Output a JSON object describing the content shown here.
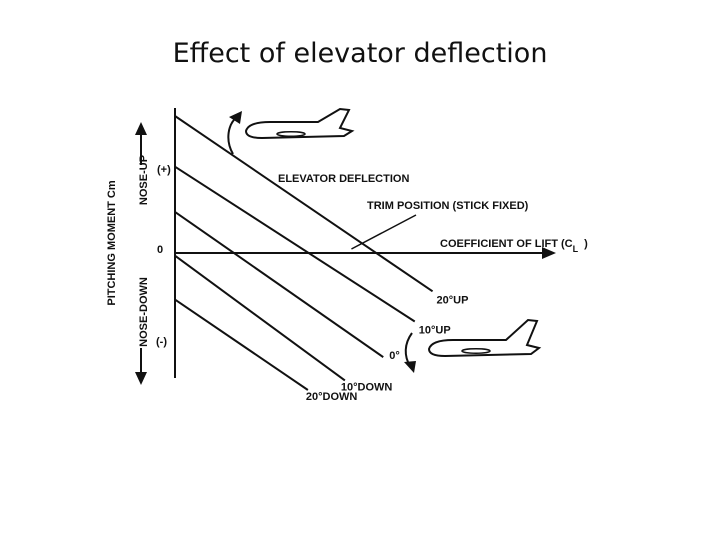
{
  "slide": {
    "title": "Effect of elevator deflection"
  },
  "chart_data": {
    "type": "line",
    "title": "",
    "xlabel": "COEFFICIENT OF LIFT (C",
    "xlabel_sub": "L",
    "xlabel_close": ")",
    "ylabel": "PITCHING MOMENT Cm",
    "y_positive_label": "NOSE-UP",
    "y_negative_label": "NOSE-DOWN",
    "y_plus_tick": "(+)",
    "y_zero_tick": "0",
    "y_minus_tick": "(-)",
    "curve_annotation": "ELEVATOR DEFLECTION",
    "trim_annotation": "TRIM POSITION (STICK FIXED)",
    "grid": false,
    "series": [
      {
        "name": "20°UP",
        "x": [
          0,
          1.88
        ],
        "y": [
          1.0,
          -0.28
        ]
      },
      {
        "name": "10°UP",
        "x": [
          0,
          1.75
        ],
        "y": [
          0.63,
          -0.5
        ]
      },
      {
        "name": "0°",
        "x": [
          0,
          1.52
        ],
        "y": [
          0.3,
          -0.76
        ]
      },
      {
        "name": "10°DOWN",
        "x": [
          0,
          1.24
        ],
        "y": [
          -0.02,
          -0.93
        ]
      },
      {
        "name": "20°DOWN",
        "x": [
          0,
          0.97
        ],
        "y": [
          -0.34,
          -1.0
        ]
      }
    ],
    "trim_point": {
      "x": 1.39,
      "y": 0
    }
  }
}
